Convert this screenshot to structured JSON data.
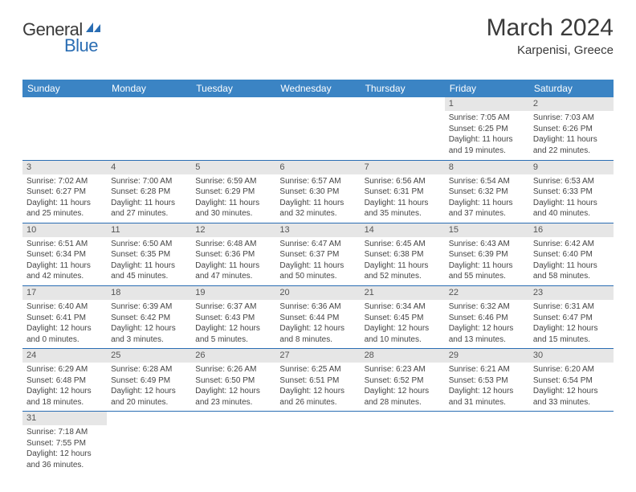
{
  "logo": {
    "general": "General",
    "blue": "Blue"
  },
  "title": "March 2024",
  "location": "Karpenisi, Greece",
  "colors": {
    "header_bg": "#3b84c4",
    "header_text": "#ffffff",
    "daynum_bg": "#e6e6e6",
    "daynum_text": "#555555",
    "border": "#2a6db3",
    "logo_blue": "#2a6db3"
  },
  "headers": [
    "Sunday",
    "Monday",
    "Tuesday",
    "Wednesday",
    "Thursday",
    "Friday",
    "Saturday"
  ],
  "weeks": [
    [
      {
        "n": "",
        "sr": "",
        "ss": "",
        "dl": ""
      },
      {
        "n": "",
        "sr": "",
        "ss": "",
        "dl": ""
      },
      {
        "n": "",
        "sr": "",
        "ss": "",
        "dl": ""
      },
      {
        "n": "",
        "sr": "",
        "ss": "",
        "dl": ""
      },
      {
        "n": "",
        "sr": "",
        "ss": "",
        "dl": ""
      },
      {
        "n": "1",
        "sr": "Sunrise: 7:05 AM",
        "ss": "Sunset: 6:25 PM",
        "dl": "Daylight: 11 hours and 19 minutes."
      },
      {
        "n": "2",
        "sr": "Sunrise: 7:03 AM",
        "ss": "Sunset: 6:26 PM",
        "dl": "Daylight: 11 hours and 22 minutes."
      }
    ],
    [
      {
        "n": "3",
        "sr": "Sunrise: 7:02 AM",
        "ss": "Sunset: 6:27 PM",
        "dl": "Daylight: 11 hours and 25 minutes."
      },
      {
        "n": "4",
        "sr": "Sunrise: 7:00 AM",
        "ss": "Sunset: 6:28 PM",
        "dl": "Daylight: 11 hours and 27 minutes."
      },
      {
        "n": "5",
        "sr": "Sunrise: 6:59 AM",
        "ss": "Sunset: 6:29 PM",
        "dl": "Daylight: 11 hours and 30 minutes."
      },
      {
        "n": "6",
        "sr": "Sunrise: 6:57 AM",
        "ss": "Sunset: 6:30 PM",
        "dl": "Daylight: 11 hours and 32 minutes."
      },
      {
        "n": "7",
        "sr": "Sunrise: 6:56 AM",
        "ss": "Sunset: 6:31 PM",
        "dl": "Daylight: 11 hours and 35 minutes."
      },
      {
        "n": "8",
        "sr": "Sunrise: 6:54 AM",
        "ss": "Sunset: 6:32 PM",
        "dl": "Daylight: 11 hours and 37 minutes."
      },
      {
        "n": "9",
        "sr": "Sunrise: 6:53 AM",
        "ss": "Sunset: 6:33 PM",
        "dl": "Daylight: 11 hours and 40 minutes."
      }
    ],
    [
      {
        "n": "10",
        "sr": "Sunrise: 6:51 AM",
        "ss": "Sunset: 6:34 PM",
        "dl": "Daylight: 11 hours and 42 minutes."
      },
      {
        "n": "11",
        "sr": "Sunrise: 6:50 AM",
        "ss": "Sunset: 6:35 PM",
        "dl": "Daylight: 11 hours and 45 minutes."
      },
      {
        "n": "12",
        "sr": "Sunrise: 6:48 AM",
        "ss": "Sunset: 6:36 PM",
        "dl": "Daylight: 11 hours and 47 minutes."
      },
      {
        "n": "13",
        "sr": "Sunrise: 6:47 AM",
        "ss": "Sunset: 6:37 PM",
        "dl": "Daylight: 11 hours and 50 minutes."
      },
      {
        "n": "14",
        "sr": "Sunrise: 6:45 AM",
        "ss": "Sunset: 6:38 PM",
        "dl": "Daylight: 11 hours and 52 minutes."
      },
      {
        "n": "15",
        "sr": "Sunrise: 6:43 AM",
        "ss": "Sunset: 6:39 PM",
        "dl": "Daylight: 11 hours and 55 minutes."
      },
      {
        "n": "16",
        "sr": "Sunrise: 6:42 AM",
        "ss": "Sunset: 6:40 PM",
        "dl": "Daylight: 11 hours and 58 minutes."
      }
    ],
    [
      {
        "n": "17",
        "sr": "Sunrise: 6:40 AM",
        "ss": "Sunset: 6:41 PM",
        "dl": "Daylight: 12 hours and 0 minutes."
      },
      {
        "n": "18",
        "sr": "Sunrise: 6:39 AM",
        "ss": "Sunset: 6:42 PM",
        "dl": "Daylight: 12 hours and 3 minutes."
      },
      {
        "n": "19",
        "sr": "Sunrise: 6:37 AM",
        "ss": "Sunset: 6:43 PM",
        "dl": "Daylight: 12 hours and 5 minutes."
      },
      {
        "n": "20",
        "sr": "Sunrise: 6:36 AM",
        "ss": "Sunset: 6:44 PM",
        "dl": "Daylight: 12 hours and 8 minutes."
      },
      {
        "n": "21",
        "sr": "Sunrise: 6:34 AM",
        "ss": "Sunset: 6:45 PM",
        "dl": "Daylight: 12 hours and 10 minutes."
      },
      {
        "n": "22",
        "sr": "Sunrise: 6:32 AM",
        "ss": "Sunset: 6:46 PM",
        "dl": "Daylight: 12 hours and 13 minutes."
      },
      {
        "n": "23",
        "sr": "Sunrise: 6:31 AM",
        "ss": "Sunset: 6:47 PM",
        "dl": "Daylight: 12 hours and 15 minutes."
      }
    ],
    [
      {
        "n": "24",
        "sr": "Sunrise: 6:29 AM",
        "ss": "Sunset: 6:48 PM",
        "dl": "Daylight: 12 hours and 18 minutes."
      },
      {
        "n": "25",
        "sr": "Sunrise: 6:28 AM",
        "ss": "Sunset: 6:49 PM",
        "dl": "Daylight: 12 hours and 20 minutes."
      },
      {
        "n": "26",
        "sr": "Sunrise: 6:26 AM",
        "ss": "Sunset: 6:50 PM",
        "dl": "Daylight: 12 hours and 23 minutes."
      },
      {
        "n": "27",
        "sr": "Sunrise: 6:25 AM",
        "ss": "Sunset: 6:51 PM",
        "dl": "Daylight: 12 hours and 26 minutes."
      },
      {
        "n": "28",
        "sr": "Sunrise: 6:23 AM",
        "ss": "Sunset: 6:52 PM",
        "dl": "Daylight: 12 hours and 28 minutes."
      },
      {
        "n": "29",
        "sr": "Sunrise: 6:21 AM",
        "ss": "Sunset: 6:53 PM",
        "dl": "Daylight: 12 hours and 31 minutes."
      },
      {
        "n": "30",
        "sr": "Sunrise: 6:20 AM",
        "ss": "Sunset: 6:54 PM",
        "dl": "Daylight: 12 hours and 33 minutes."
      }
    ],
    [
      {
        "n": "31",
        "sr": "Sunrise: 7:18 AM",
        "ss": "Sunset: 7:55 PM",
        "dl": "Daylight: 12 hours and 36 minutes."
      },
      {
        "n": "",
        "sr": "",
        "ss": "",
        "dl": ""
      },
      {
        "n": "",
        "sr": "",
        "ss": "",
        "dl": ""
      },
      {
        "n": "",
        "sr": "",
        "ss": "",
        "dl": ""
      },
      {
        "n": "",
        "sr": "",
        "ss": "",
        "dl": ""
      },
      {
        "n": "",
        "sr": "",
        "ss": "",
        "dl": ""
      },
      {
        "n": "",
        "sr": "",
        "ss": "",
        "dl": ""
      }
    ]
  ]
}
